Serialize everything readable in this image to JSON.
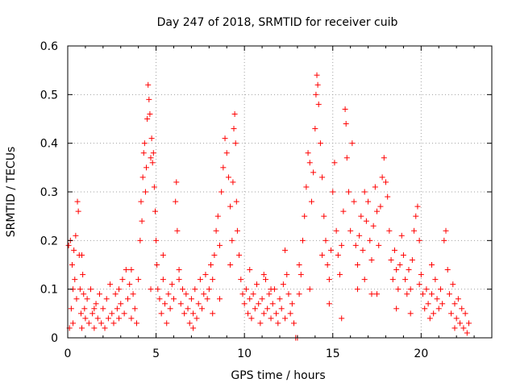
{
  "chart_data": {
    "type": "scatter",
    "title": "Day 247 of 2018, SRMTID for receiver cuib",
    "xlabel": "GPS time / hours",
    "ylabel": "SRMTID / TECUs",
    "xlim": [
      0,
      24
    ],
    "ylim": [
      0,
      0.6
    ],
    "x_ticks": [
      0,
      5,
      10,
      15,
      20
    ],
    "x_tick_labels": [
      "0",
      "5",
      "10",
      "15",
      "20"
    ],
    "y_ticks": [
      0,
      0.1,
      0.2,
      0.3,
      0.4,
      0.5,
      0.6
    ],
    "y_tick_labels": [
      "0",
      "0.1",
      "0.2",
      "0.3",
      "0.4",
      "0.5",
      "0.6"
    ],
    "grid": true,
    "marker": "plus",
    "color": "#ff0000",
    "series": [
      {
        "name": "SRMTID",
        "points": [
          [
            0.05,
            0.19
          ],
          [
            0.1,
            0.02
          ],
          [
            0.15,
            0.2
          ],
          [
            0.2,
            0.06
          ],
          [
            0.25,
            0.15
          ],
          [
            0.3,
            0.03
          ],
          [
            0.35,
            0.18
          ],
          [
            0.4,
            0.12
          ],
          [
            0.45,
            0.21
          ],
          [
            0.5,
            0.08
          ],
          [
            0.55,
            0.28
          ],
          [
            0.6,
            0.26
          ],
          [
            0.65,
            0.17
          ],
          [
            0.7,
            0.1
          ],
          [
            0.75,
            0.05
          ],
          [
            0.8,
            0.02
          ],
          [
            0.85,
            0.13
          ],
          [
            0.9,
            0.09
          ],
          [
            0.95,
            0.06
          ],
          [
            1.0,
            0.04
          ],
          [
            1.1,
            0.08
          ],
          [
            1.2,
            0.03
          ],
          [
            1.3,
            0.1
          ],
          [
            1.4,
            0.05
          ],
          [
            1.5,
            0.02
          ],
          [
            1.6,
            0.07
          ],
          [
            1.7,
            0.04
          ],
          [
            1.8,
            0.09
          ],
          [
            1.9,
            0.03
          ],
          [
            2.0,
            0.06
          ],
          [
            2.1,
            0.02
          ],
          [
            2.2,
            0.08
          ],
          [
            2.3,
            0.04
          ],
          [
            2.4,
            0.11
          ],
          [
            2.5,
            0.05
          ],
          [
            2.6,
            0.03
          ],
          [
            2.7,
            0.09
          ],
          [
            2.8,
            0.06
          ],
          [
            2.9,
            0.1
          ],
          [
            3.0,
            0.07
          ],
          [
            3.1,
            0.12
          ],
          [
            3.2,
            0.05
          ],
          [
            3.3,
            0.14
          ],
          [
            3.4,
            0.08
          ],
          [
            3.5,
            0.11
          ],
          [
            3.6,
            0.04
          ],
          [
            3.7,
            0.09
          ],
          [
            3.8,
            0.06
          ],
          [
            3.9,
            0.03
          ],
          [
            4.0,
            0.12
          ],
          [
            4.1,
            0.2
          ],
          [
            4.15,
            0.28
          ],
          [
            4.2,
            0.24
          ],
          [
            4.25,
            0.33
          ],
          [
            4.3,
            0.38
          ],
          [
            4.35,
            0.4
          ],
          [
            4.4,
            0.3
          ],
          [
            4.45,
            0.35
          ],
          [
            4.5,
            0.45
          ],
          [
            4.55,
            0.52
          ],
          [
            4.6,
            0.49
          ],
          [
            4.65,
            0.46
          ],
          [
            4.7,
            0.37
          ],
          [
            4.75,
            0.41
          ],
          [
            4.8,
            0.36
          ],
          [
            4.85,
            0.38
          ],
          [
            4.9,
            0.31
          ],
          [
            4.95,
            0.26
          ],
          [
            5.0,
            0.2
          ],
          [
            5.05,
            0.15
          ],
          [
            5.1,
            0.1
          ],
          [
            5.2,
            0.08
          ],
          [
            5.3,
            0.05
          ],
          [
            5.4,
            0.12
          ],
          [
            5.5,
            0.07
          ],
          [
            5.6,
            0.03
          ],
          [
            5.7,
            0.09
          ],
          [
            5.8,
            0.06
          ],
          [
            5.9,
            0.11
          ],
          [
            6.0,
            0.08
          ],
          [
            6.1,
            0.28
          ],
          [
            6.15,
            0.32
          ],
          [
            6.2,
            0.22
          ],
          [
            6.3,
            0.14
          ],
          [
            6.4,
            0.07
          ],
          [
            6.5,
            0.1
          ],
          [
            6.6,
            0.05
          ],
          [
            6.7,
            0.09
          ],
          [
            6.8,
            0.06
          ],
          [
            6.9,
            0.03
          ],
          [
            7.0,
            0.08
          ],
          [
            7.1,
            0.05
          ],
          [
            7.2,
            0.1
          ],
          [
            7.3,
            0.04
          ],
          [
            7.4,
            0.07
          ],
          [
            7.5,
            0.12
          ],
          [
            7.6,
            0.06
          ],
          [
            7.7,
            0.09
          ],
          [
            7.8,
            0.13
          ],
          [
            7.9,
            0.08
          ],
          [
            8.0,
            0.1
          ],
          [
            8.1,
            0.15
          ],
          [
            8.2,
            0.12
          ],
          [
            8.3,
            0.17
          ],
          [
            8.4,
            0.22
          ],
          [
            8.5,
            0.25
          ],
          [
            8.6,
            0.19
          ],
          [
            8.7,
            0.3
          ],
          [
            8.8,
            0.35
          ],
          [
            8.9,
            0.41
          ],
          [
            9.0,
            0.38
          ],
          [
            9.1,
            0.33
          ],
          [
            9.2,
            0.27
          ],
          [
            9.3,
            0.2
          ],
          [
            9.35,
            0.32
          ],
          [
            9.4,
            0.43
          ],
          [
            9.45,
            0.46
          ],
          [
            9.5,
            0.4
          ],
          [
            9.55,
            0.28
          ],
          [
            9.6,
            0.22
          ],
          [
            9.7,
            0.17
          ],
          [
            9.8,
            0.12
          ],
          [
            9.9,
            0.09
          ],
          [
            10.0,
            0.07
          ],
          [
            10.1,
            0.1
          ],
          [
            10.2,
            0.05
          ],
          [
            10.3,
            0.08
          ],
          [
            10.4,
            0.04
          ],
          [
            10.5,
            0.09
          ],
          [
            10.6,
            0.06
          ],
          [
            10.7,
            0.11
          ],
          [
            10.8,
            0.07
          ],
          [
            10.9,
            0.03
          ],
          [
            11.0,
            0.08
          ],
          [
            11.1,
            0.05
          ],
          [
            11.2,
            0.12
          ],
          [
            11.3,
            0.06
          ],
          [
            11.4,
            0.09
          ],
          [
            11.5,
            0.04
          ],
          [
            11.6,
            0.07
          ],
          [
            11.7,
            0.1
          ],
          [
            11.8,
            0.05
          ],
          [
            11.9,
            0.03
          ],
          [
            12.0,
            0.08
          ],
          [
            12.1,
            0.06
          ],
          [
            12.2,
            0.11
          ],
          [
            12.3,
            0.18
          ],
          [
            12.4,
            0.13
          ],
          [
            12.5,
            0.09
          ],
          [
            12.6,
            0.05
          ],
          [
            12.7,
            0.07
          ],
          [
            12.8,
            0.03
          ],
          [
            12.9,
            0.0
          ],
          [
            13.0,
            0.0
          ],
          [
            13.1,
            0.09
          ],
          [
            13.2,
            0.13
          ],
          [
            13.3,
            0.2
          ],
          [
            13.4,
            0.25
          ],
          [
            13.5,
            0.31
          ],
          [
            13.6,
            0.38
          ],
          [
            13.7,
            0.36
          ],
          [
            13.8,
            0.28
          ],
          [
            13.9,
            0.34
          ],
          [
            14.0,
            0.43
          ],
          [
            14.05,
            0.5
          ],
          [
            14.1,
            0.54
          ],
          [
            14.15,
            0.52
          ],
          [
            14.2,
            0.48
          ],
          [
            14.3,
            0.4
          ],
          [
            14.4,
            0.33
          ],
          [
            14.5,
            0.25
          ],
          [
            14.6,
            0.2
          ],
          [
            14.7,
            0.15
          ],
          [
            14.8,
            0.12
          ],
          [
            14.9,
            0.18
          ],
          [
            15.0,
            0.3
          ],
          [
            15.1,
            0.36
          ],
          [
            15.2,
            0.22
          ],
          [
            15.3,
            0.17
          ],
          [
            15.4,
            0.13
          ],
          [
            15.5,
            0.19
          ],
          [
            15.6,
            0.26
          ],
          [
            15.7,
            0.47
          ],
          [
            15.75,
            0.44
          ],
          [
            15.8,
            0.37
          ],
          [
            15.9,
            0.3
          ],
          [
            16.0,
            0.22
          ],
          [
            16.1,
            0.4
          ],
          [
            16.2,
            0.28
          ],
          [
            16.3,
            0.19
          ],
          [
            16.4,
            0.15
          ],
          [
            16.5,
            0.21
          ],
          [
            16.6,
            0.25
          ],
          [
            16.7,
            0.18
          ],
          [
            16.8,
            0.12
          ],
          [
            16.9,
            0.24
          ],
          [
            17.0,
            0.28
          ],
          [
            17.1,
            0.2
          ],
          [
            17.2,
            0.16
          ],
          [
            17.3,
            0.23
          ],
          [
            17.4,
            0.31
          ],
          [
            17.5,
            0.26
          ],
          [
            17.6,
            0.19
          ],
          [
            17.7,
            0.27
          ],
          [
            17.8,
            0.33
          ],
          [
            17.9,
            0.37
          ],
          [
            18.0,
            0.32
          ],
          [
            18.1,
            0.29
          ],
          [
            18.2,
            0.22
          ],
          [
            18.3,
            0.16
          ],
          [
            18.4,
            0.12
          ],
          [
            18.5,
            0.18
          ],
          [
            18.6,
            0.14
          ],
          [
            18.7,
            0.1
          ],
          [
            18.8,
            0.15
          ],
          [
            18.9,
            0.21
          ],
          [
            19.0,
            0.17
          ],
          [
            19.1,
            0.12
          ],
          [
            19.2,
            0.09
          ],
          [
            19.3,
            0.14
          ],
          [
            19.4,
            0.1
          ],
          [
            19.5,
            0.16
          ],
          [
            19.6,
            0.22
          ],
          [
            19.7,
            0.25
          ],
          [
            19.8,
            0.27
          ],
          [
            19.9,
            0.2
          ],
          [
            20.0,
            0.13
          ],
          [
            20.1,
            0.09
          ],
          [
            20.2,
            0.06
          ],
          [
            20.3,
            0.1
          ],
          [
            20.4,
            0.07
          ],
          [
            20.5,
            0.04
          ],
          [
            20.6,
            0.09
          ],
          [
            20.7,
            0.05
          ],
          [
            20.8,
            0.12
          ],
          [
            20.9,
            0.08
          ],
          [
            21.0,
            0.06
          ],
          [
            21.1,
            0.1
          ],
          [
            21.2,
            0.07
          ],
          [
            21.3,
            0.2
          ],
          [
            21.4,
            0.22
          ],
          [
            21.5,
            0.14
          ],
          [
            21.6,
            0.09
          ],
          [
            21.7,
            0.05
          ],
          [
            21.8,
            0.11
          ],
          [
            21.9,
            0.07
          ],
          [
            22.0,
            0.04
          ],
          [
            22.1,
            0.08
          ],
          [
            22.2,
            0.03
          ],
          [
            22.3,
            0.06
          ],
          [
            22.4,
            0.02
          ],
          [
            22.5,
            0.05
          ],
          [
            22.6,
            0.01
          ],
          [
            22.7,
            0.03
          ],
          [
            0.3,
            0.1
          ],
          [
            1.5,
            0.06
          ],
          [
            2.9,
            0.04
          ],
          [
            4.7,
            0.1
          ],
          [
            6.3,
            0.12
          ],
          [
            7.1,
            0.02
          ],
          [
            8.6,
            0.08
          ],
          [
            9.2,
            0.15
          ],
          [
            10.3,
            0.14
          ],
          [
            11.5,
            0.1
          ],
          [
            12.3,
            0.04
          ],
          [
            13.7,
            0.1
          ],
          [
            14.8,
            0.07
          ],
          [
            15.5,
            0.04
          ],
          [
            16.4,
            0.1
          ],
          [
            17.2,
            0.09
          ],
          [
            18.6,
            0.06
          ],
          [
            19.4,
            0.05
          ],
          [
            20.6,
            0.15
          ],
          [
            21.9,
            0.02
          ],
          [
            0.8,
            0.17
          ],
          [
            3.6,
            0.14
          ],
          [
            5.4,
            0.17
          ],
          [
            8.2,
            0.05
          ],
          [
            11.1,
            0.13
          ],
          [
            16.8,
            0.3
          ],
          [
            17.5,
            0.09
          ],
          [
            19.9,
            0.11
          ],
          [
            14.4,
            0.17
          ],
          [
            13.1,
            0.15
          ]
        ]
      }
    ]
  }
}
